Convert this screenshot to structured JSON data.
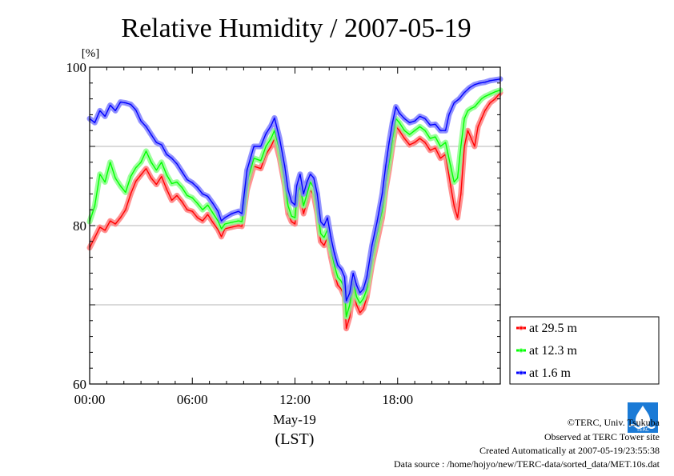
{
  "chart_data": {
    "type": "line",
    "title": "Relative Humidity / 2007-05-19",
    "ylabel": "[%]",
    "xlabel": "May-19",
    "xlabel2": "(LST)",
    "ylim": [
      60,
      100
    ],
    "yticks": [
      "60",
      "80",
      "100"
    ],
    "xlim": [
      0,
      24
    ],
    "xticks": [
      {
        "h": 0,
        "label": "00:00"
      },
      {
        "h": 6,
        "label": "06:00"
      },
      {
        "h": 12,
        "label": "12:00"
      },
      {
        "h": 18,
        "label": "18:00"
      }
    ],
    "grid": true,
    "legend_position": "right",
    "series": [
      {
        "name": "at 29.5 m",
        "color": "#ff0000",
        "points": [
          [
            0,
            77.2
          ],
          [
            0.3,
            78.5
          ],
          [
            0.6,
            79.8
          ],
          [
            0.9,
            79.4
          ],
          [
            1.2,
            80.6
          ],
          [
            1.5,
            80.2
          ],
          [
            1.8,
            81.0
          ],
          [
            2.1,
            82.0
          ],
          [
            2.4,
            84.0
          ],
          [
            2.7,
            85.6
          ],
          [
            3.0,
            86.4
          ],
          [
            3.3,
            87.2
          ],
          [
            3.6,
            86.0
          ],
          [
            3.9,
            85.2
          ],
          [
            4.2,
            86.2
          ],
          [
            4.5,
            84.6
          ],
          [
            4.8,
            83.2
          ],
          [
            5.1,
            83.8
          ],
          [
            5.4,
            83.0
          ],
          [
            5.7,
            82.0
          ],
          [
            6.0,
            81.8
          ],
          [
            6.3,
            81.0
          ],
          [
            6.6,
            80.6
          ],
          [
            6.9,
            81.4
          ],
          [
            7.2,
            80.4
          ],
          [
            7.5,
            79.5
          ],
          [
            7.7,
            78.6
          ],
          [
            7.9,
            79.6
          ],
          [
            8.3,
            79.8
          ],
          [
            8.7,
            80.0
          ],
          [
            8.9,
            79.9
          ],
          [
            9.2,
            84.5
          ],
          [
            9.6,
            87.5
          ],
          [
            10.0,
            87.2
          ],
          [
            10.3,
            89.0
          ],
          [
            10.6,
            90.0
          ],
          [
            10.8,
            91.0
          ],
          [
            11.1,
            88.5
          ],
          [
            11.4,
            85.0
          ],
          [
            11.6,
            81.5
          ],
          [
            11.8,
            80.5
          ],
          [
            12.0,
            80.2
          ],
          [
            12.1,
            82.5
          ],
          [
            12.3,
            84.0
          ],
          [
            12.5,
            81.5
          ],
          [
            12.7,
            83.0
          ],
          [
            12.9,
            84.5
          ],
          [
            13.1,
            83.8
          ],
          [
            13.3,
            81.5
          ],
          [
            13.5,
            78.0
          ],
          [
            13.7,
            77.5
          ],
          [
            13.9,
            78.5
          ],
          [
            14.1,
            76.0
          ],
          [
            14.3,
            74.0
          ],
          [
            14.5,
            72.5
          ],
          [
            14.7,
            72.0
          ],
          [
            14.9,
            71.0
          ],
          [
            15.0,
            67.0
          ],
          [
            15.2,
            68.5
          ],
          [
            15.4,
            72.0
          ],
          [
            15.6,
            70.0
          ],
          [
            15.8,
            69.0
          ],
          [
            16.0,
            69.5
          ],
          [
            16.2,
            71.0
          ],
          [
            16.5,
            75.0
          ],
          [
            16.8,
            78.0
          ],
          [
            17.1,
            81.0
          ],
          [
            17.3,
            84.5
          ],
          [
            17.5,
            87.0
          ],
          [
            17.7,
            90.0
          ],
          [
            17.9,
            92.5
          ],
          [
            18.1,
            92.0
          ],
          [
            18.4,
            91.0
          ],
          [
            18.7,
            90.2
          ],
          [
            19.0,
            90.5
          ],
          [
            19.3,
            91.0
          ],
          [
            19.6,
            90.5
          ],
          [
            19.9,
            89.5
          ],
          [
            20.2,
            89.8
          ],
          [
            20.5,
            88.5
          ],
          [
            20.8,
            89.0
          ],
          [
            21.1,
            85.0
          ],
          [
            21.3,
            82.5
          ],
          [
            21.5,
            81.0
          ],
          [
            21.7,
            84.0
          ],
          [
            21.9,
            90.0
          ],
          [
            22.1,
            92.0
          ],
          [
            22.3,
            91.0
          ],
          [
            22.5,
            90.0
          ],
          [
            22.7,
            92.5
          ],
          [
            22.9,
            93.5
          ],
          [
            23.1,
            94.5
          ],
          [
            23.4,
            95.5
          ],
          [
            23.7,
            96.0
          ],
          [
            24.0,
            96.8
          ]
        ]
      },
      {
        "name": "at 12.3 m",
        "color": "#00ff00",
        "points": [
          [
            0,
            80.5
          ],
          [
            0.3,
            82.5
          ],
          [
            0.6,
            86.5
          ],
          [
            0.9,
            85.5
          ],
          [
            1.2,
            88.0
          ],
          [
            1.5,
            86.0
          ],
          [
            1.8,
            85.0
          ],
          [
            2.1,
            84.2
          ],
          [
            2.4,
            86.2
          ],
          [
            2.7,
            87.3
          ],
          [
            3.0,
            88.0
          ],
          [
            3.3,
            89.4
          ],
          [
            3.6,
            88.0
          ],
          [
            3.9,
            87.0
          ],
          [
            4.2,
            88.0
          ],
          [
            4.5,
            86.4
          ],
          [
            4.8,
            85.3
          ],
          [
            5.1,
            85.5
          ],
          [
            5.4,
            84.8
          ],
          [
            5.7,
            83.8
          ],
          [
            6.0,
            83.5
          ],
          [
            6.3,
            82.8
          ],
          [
            6.6,
            82.0
          ],
          [
            6.9,
            82.6
          ],
          [
            7.2,
            81.6
          ],
          [
            7.5,
            80.6
          ],
          [
            7.7,
            79.6
          ],
          [
            7.9,
            80.2
          ],
          [
            8.3,
            80.4
          ],
          [
            8.7,
            80.6
          ],
          [
            8.9,
            80.5
          ],
          [
            9.2,
            85.5
          ],
          [
            9.6,
            88.5
          ],
          [
            10.0,
            88.2
          ],
          [
            10.3,
            90.0
          ],
          [
            10.6,
            91.0
          ],
          [
            10.8,
            92.0
          ],
          [
            11.1,
            89.5
          ],
          [
            11.4,
            85.8
          ],
          [
            11.6,
            82.5
          ],
          [
            11.8,
            81.2
          ],
          [
            12.0,
            81.0
          ],
          [
            12.1,
            83.5
          ],
          [
            12.3,
            85.0
          ],
          [
            12.5,
            82.5
          ],
          [
            12.7,
            84.0
          ],
          [
            12.9,
            85.5
          ],
          [
            13.1,
            84.8
          ],
          [
            13.3,
            82.5
          ],
          [
            13.5,
            79.0
          ],
          [
            13.7,
            78.5
          ],
          [
            13.9,
            79.5
          ],
          [
            14.1,
            77.0
          ],
          [
            14.3,
            75.0
          ],
          [
            14.5,
            73.5
          ],
          [
            14.7,
            73.0
          ],
          [
            14.9,
            72.0
          ],
          [
            15.0,
            68.5
          ],
          [
            15.2,
            70.0
          ],
          [
            15.4,
            73.0
          ],
          [
            15.6,
            71.0
          ],
          [
            15.8,
            70.2
          ],
          [
            16.0,
            70.8
          ],
          [
            16.2,
            72.0
          ],
          [
            16.5,
            76.0
          ],
          [
            16.8,
            79.0
          ],
          [
            17.1,
            82.0
          ],
          [
            17.3,
            85.5
          ],
          [
            17.5,
            88.0
          ],
          [
            17.7,
            91.0
          ],
          [
            17.9,
            93.5
          ],
          [
            18.1,
            93.0
          ],
          [
            18.4,
            92.0
          ],
          [
            18.7,
            91.5
          ],
          [
            19.0,
            92.0
          ],
          [
            19.3,
            92.5
          ],
          [
            19.6,
            92.0
          ],
          [
            19.9,
            91.0
          ],
          [
            20.2,
            91.2
          ],
          [
            20.5,
            90.0
          ],
          [
            20.8,
            90.5
          ],
          [
            21.1,
            87.5
          ],
          [
            21.3,
            85.5
          ],
          [
            21.5,
            86.0
          ],
          [
            21.7,
            90.0
          ],
          [
            21.9,
            93.5
          ],
          [
            22.1,
            94.5
          ],
          [
            22.3,
            94.8
          ],
          [
            22.5,
            95.0
          ],
          [
            22.7,
            95.5
          ],
          [
            22.9,
            96.0
          ],
          [
            23.1,
            96.3
          ],
          [
            23.4,
            96.6
          ],
          [
            23.7,
            96.9
          ],
          [
            24.0,
            97.1
          ]
        ]
      },
      {
        "name": "at 1.6 m",
        "color": "#0000ff",
        "points": [
          [
            0,
            93.5
          ],
          [
            0.3,
            93.0
          ],
          [
            0.6,
            94.5
          ],
          [
            0.9,
            93.8
          ],
          [
            1.2,
            95.2
          ],
          [
            1.5,
            94.5
          ],
          [
            1.8,
            95.6
          ],
          [
            2.1,
            95.5
          ],
          [
            2.4,
            95.3
          ],
          [
            2.7,
            94.6
          ],
          [
            3.0,
            93.2
          ],
          [
            3.3,
            92.5
          ],
          [
            3.6,
            91.5
          ],
          [
            3.9,
            90.5
          ],
          [
            4.2,
            90.2
          ],
          [
            4.5,
            89.0
          ],
          [
            4.8,
            88.5
          ],
          [
            5.1,
            87.8
          ],
          [
            5.4,
            86.8
          ],
          [
            5.7,
            85.8
          ],
          [
            6.0,
            85.4
          ],
          [
            6.3,
            84.8
          ],
          [
            6.6,
            84.0
          ],
          [
            6.9,
            83.7
          ],
          [
            7.2,
            82.8
          ],
          [
            7.5,
            81.8
          ],
          [
            7.7,
            80.6
          ],
          [
            7.9,
            81.0
          ],
          [
            8.3,
            81.5
          ],
          [
            8.7,
            81.8
          ],
          [
            8.9,
            81.5
          ],
          [
            9.2,
            87.0
          ],
          [
            9.6,
            90.0
          ],
          [
            10.0,
            90.0
          ],
          [
            10.3,
            91.6
          ],
          [
            10.6,
            92.6
          ],
          [
            10.8,
            93.6
          ],
          [
            11.1,
            91.0
          ],
          [
            11.4,
            87.5
          ],
          [
            11.6,
            84.5
          ],
          [
            11.8,
            83.0
          ],
          [
            12.0,
            82.6
          ],
          [
            12.1,
            85.0
          ],
          [
            12.3,
            86.5
          ],
          [
            12.5,
            84.0
          ],
          [
            12.7,
            85.5
          ],
          [
            12.9,
            86.5
          ],
          [
            13.1,
            86.0
          ],
          [
            13.3,
            84.0
          ],
          [
            13.5,
            80.5
          ],
          [
            13.7,
            80.0
          ],
          [
            13.9,
            81.0
          ],
          [
            14.1,
            78.5
          ],
          [
            14.3,
            76.5
          ],
          [
            14.5,
            75.0
          ],
          [
            14.7,
            74.5
          ],
          [
            14.9,
            73.5
          ],
          [
            15.0,
            70.5
          ],
          [
            15.2,
            71.5
          ],
          [
            15.4,
            74.0
          ],
          [
            15.6,
            72.5
          ],
          [
            15.8,
            71.5
          ],
          [
            16.0,
            72.0
          ],
          [
            16.2,
            73.5
          ],
          [
            16.5,
            77.5
          ],
          [
            16.8,
            80.5
          ],
          [
            17.1,
            84.0
          ],
          [
            17.3,
            87.5
          ],
          [
            17.5,
            90.5
          ],
          [
            17.7,
            93.0
          ],
          [
            17.9,
            95.0
          ],
          [
            18.1,
            94.2
          ],
          [
            18.4,
            93.5
          ],
          [
            18.7,
            93.0
          ],
          [
            19.0,
            93.2
          ],
          [
            19.3,
            93.8
          ],
          [
            19.6,
            93.5
          ],
          [
            19.9,
            92.7
          ],
          [
            20.2,
            92.8
          ],
          [
            20.5,
            92.0
          ],
          [
            20.8,
            92.0
          ],
          [
            21.0,
            94.0
          ],
          [
            21.3,
            95.5
          ],
          [
            21.6,
            96.0
          ],
          [
            21.9,
            96.8
          ],
          [
            22.2,
            97.4
          ],
          [
            22.5,
            97.8
          ],
          [
            22.8,
            98.0
          ],
          [
            23.1,
            98.1
          ],
          [
            23.4,
            98.3
          ],
          [
            23.7,
            98.4
          ],
          [
            24.0,
            98.5
          ]
        ]
      }
    ]
  },
  "footer": {
    "copyright": "©TERC, Univ. Tsukuba",
    "observed": "Observed at TERC Tower site",
    "created": "Created Automatically at 2007-05-19/23:55:38",
    "source": "Data source : /home/hojyo/new/TERC-data/sorted_data/MET.10s.dat",
    "logo_text": "TERC"
  }
}
